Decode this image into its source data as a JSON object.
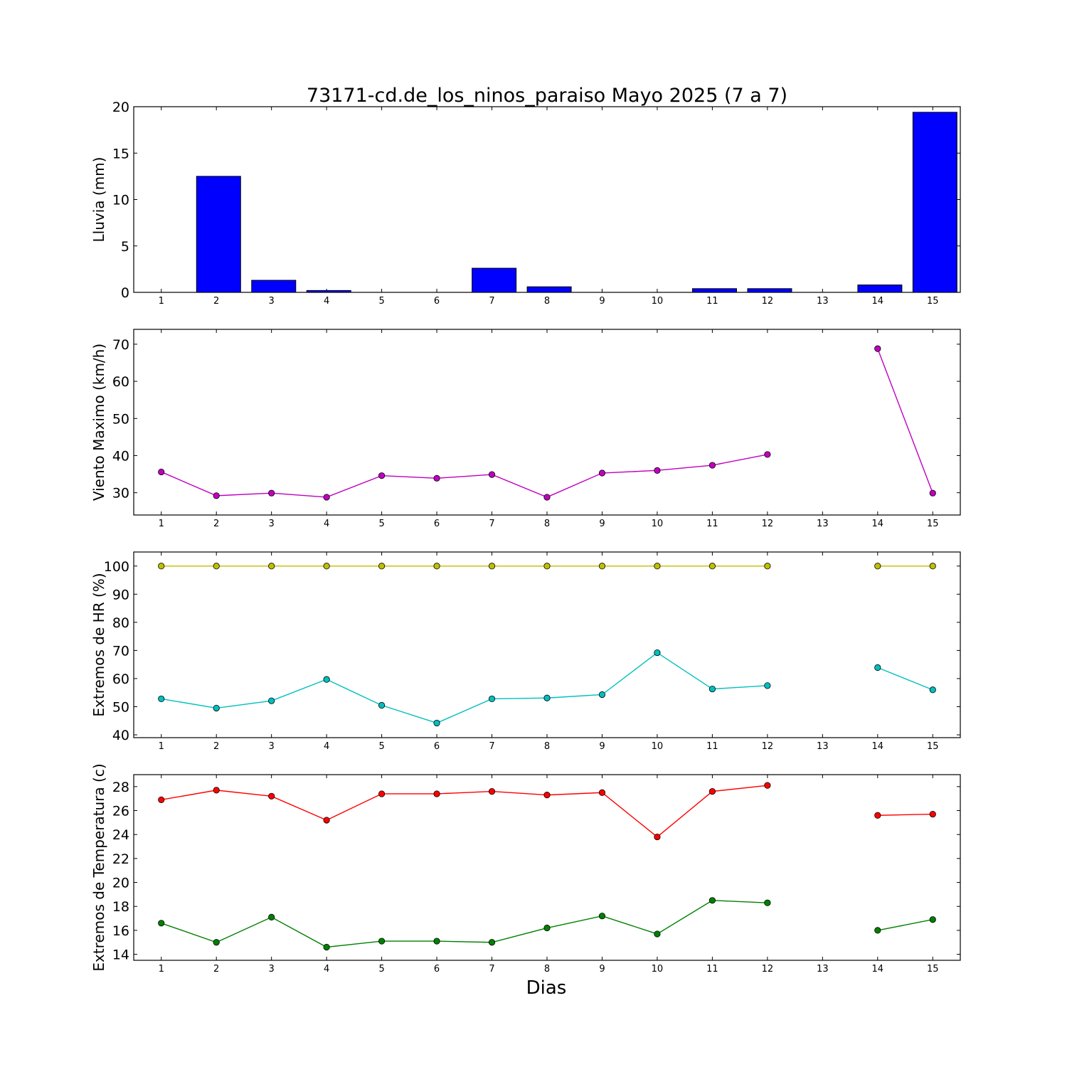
{
  "chart_data": {
    "title": "73171-cd.de_los_ninos_paraiso Mayo 2025  (7 a 7)",
    "xlabel": "Dias",
    "x_ticks": [
      1,
      2,
      3,
      4,
      5,
      6,
      7,
      8,
      9,
      10,
      11,
      12,
      13,
      14,
      15
    ],
    "xlim": [
      0.5,
      15.5
    ],
    "panels": [
      {
        "type": "bar",
        "ylabel": "Lluvia (mm)",
        "ylim": [
          0,
          20
        ],
        "yticks": [
          0,
          5,
          10,
          15,
          20
        ],
        "x": [
          1,
          2,
          3,
          4,
          5,
          6,
          7,
          8,
          9,
          10,
          11,
          12,
          13,
          14,
          15
        ],
        "series": [
          {
            "color": "#0000ff",
            "values": [
              0,
              12.5,
              1.3,
              0.2,
              0,
              0,
              2.6,
              0.6,
              0,
              0,
              0.4,
              0.4,
              0,
              0.8,
              19.4
            ]
          }
        ]
      },
      {
        "type": "line",
        "ylabel": "Viento Maximo (km/h)",
        "ylim": [
          24,
          74
        ],
        "yticks": [
          30,
          40,
          50,
          60,
          70
        ],
        "x": [
          1,
          2,
          3,
          4,
          5,
          6,
          7,
          8,
          9,
          10,
          11,
          12,
          13,
          14,
          15
        ],
        "series": [
          {
            "color": "#bf00bf",
            "values": [
              35.6,
              29.2,
              29.9,
              28.8,
              34.6,
              33.9,
              34.9,
              28.8,
              35.3,
              36.0,
              37.4,
              40.3,
              null,
              68.8,
              29.9
            ]
          }
        ]
      },
      {
        "type": "line",
        "ylabel": "Extremos de HR (%)",
        "ylim": [
          39,
          105
        ],
        "yticks": [
          40,
          50,
          60,
          70,
          80,
          90,
          100
        ],
        "x": [
          1,
          2,
          3,
          4,
          5,
          6,
          7,
          8,
          9,
          10,
          11,
          12,
          13,
          14,
          15
        ],
        "series": [
          {
            "color": "#bfbf00",
            "values": [
              100,
              100,
              100,
              100,
              100,
              100,
              100,
              100,
              100,
              100,
              100,
              100,
              null,
              100,
              100
            ]
          },
          {
            "color": "#00bfbf",
            "values": [
              52.8,
              49.5,
              52.1,
              59.7,
              50.5,
              44.2,
              52.8,
              53.1,
              54.3,
              69.2,
              56.3,
              57.5,
              null,
              63.9,
              56.0
            ]
          }
        ]
      },
      {
        "type": "line",
        "ylabel": "Extremos de Temperatura (c)",
        "ylim": [
          13.5,
          29
        ],
        "yticks": [
          14,
          16,
          18,
          20,
          22,
          24,
          26,
          28
        ],
        "x": [
          1,
          2,
          3,
          4,
          5,
          6,
          7,
          8,
          9,
          10,
          11,
          12,
          13,
          14,
          15
        ],
        "series": [
          {
            "color": "#ff0000",
            "values": [
              26.9,
              27.7,
              27.2,
              25.2,
              27.4,
              27.4,
              27.6,
              27.3,
              27.5,
              23.8,
              27.6,
              28.1,
              null,
              25.6,
              25.7
            ]
          },
          {
            "color": "#008000",
            "values": [
              16.6,
              15.0,
              17.1,
              14.6,
              15.1,
              15.1,
              15.0,
              16.2,
              17.2,
              15.7,
              18.5,
              18.3,
              null,
              16.0,
              16.9
            ]
          }
        ]
      }
    ]
  }
}
